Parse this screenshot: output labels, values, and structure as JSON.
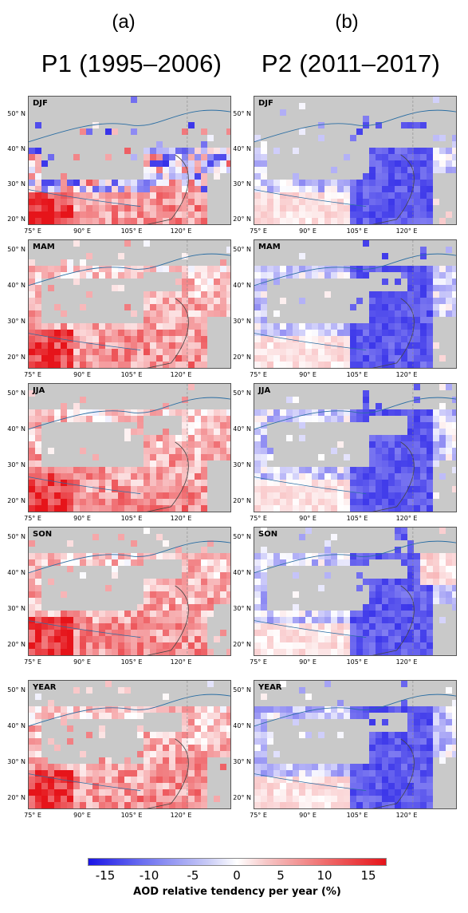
{
  "columns": [
    {
      "label": "(a)",
      "period": "P1 (1995–2006)"
    },
    {
      "label": "(b)",
      "period": "P2 (2011–2017)"
    }
  ],
  "seasons": [
    "DJF",
    "MAM",
    "JJA",
    "SON",
    "YEAR"
  ],
  "lat_labels": [
    "50° N",
    "40° N",
    "30° N",
    "20° N"
  ],
  "lon_labels": [
    "75° E",
    "90° E",
    "105° E",
    "120° E"
  ],
  "colorbar": {
    "ticks": [
      "-15",
      "-10",
      "-5",
      "0",
      "5",
      "10",
      "15"
    ],
    "title": "AOD relative tendency per year (%)",
    "min_color": "#1a14e6",
    "mid_color": "#ffffff",
    "max_color": "#e6141a"
  },
  "colors": {
    "no_data": "#c9c9c9",
    "coastline": "#2b6ea3",
    "border": "#444444"
  }
}
